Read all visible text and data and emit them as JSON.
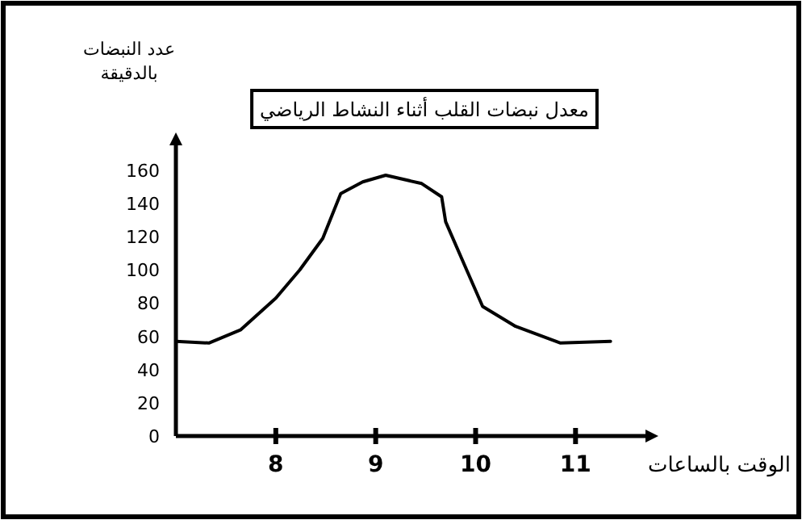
{
  "chart_data": {
    "type": "line",
    "title": "معدل نبضات القلب أثناء النشاط الرياضي",
    "xlabel": "الوقت بالساعات",
    "ylabel": "عدد النبضات بالدقيقة",
    "x": [
      7.0,
      7.33,
      7.65,
      8.0,
      8.24,
      8.47,
      8.65,
      8.87,
      9.1,
      9.46,
      9.66,
      9.7,
      9.91,
      10.07,
      10.4,
      10.85,
      11.35
    ],
    "series": [
      {
        "color": "#000000",
        "values": [
          57,
          56,
          64,
          83,
          100,
          119,
          146,
          153,
          157,
          152,
          144,
          129,
          100,
          78,
          66,
          56,
          57
        ]
      }
    ],
    "xlim": [
      7,
      11.7
    ],
    "xticks": [
      8,
      9,
      10,
      11
    ],
    "ylim": [
      0,
      175
    ],
    "yticks": [
      0,
      20,
      40,
      60,
      80,
      100,
      120,
      140,
      160
    ],
    "grid": false,
    "marker": "none",
    "line_style": "solid"
  }
}
